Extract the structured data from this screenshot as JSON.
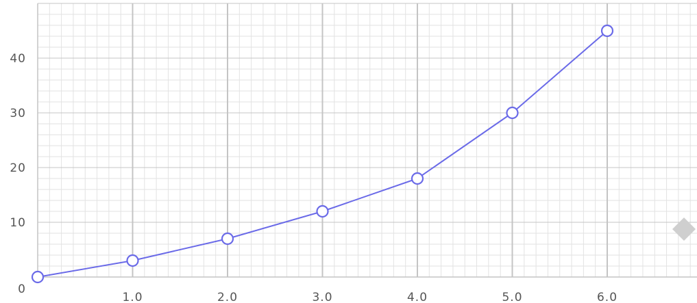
{
  "chart_data": {
    "type": "line",
    "title": "",
    "xlabel": "",
    "ylabel": "",
    "x": [
      0,
      1,
      2,
      3,
      4,
      5,
      6
    ],
    "series": [
      {
        "values": [
          0,
          3,
          7,
          12,
          18,
          30,
          45
        ],
        "color": "#6a6ae8",
        "marker": "hollow-circle"
      }
    ],
    "xlim": [
      0,
      7
    ],
    "ylim": [
      0,
      50
    ],
    "x_ticks": [
      {
        "value": 0,
        "label": "0"
      },
      {
        "value": 1,
        "label": "1.0"
      },
      {
        "value": 2,
        "label": "2.0"
      },
      {
        "value": 3,
        "label": "3.0"
      },
      {
        "value": 4,
        "label": "4.0"
      },
      {
        "value": 5,
        "label": "5.0"
      },
      {
        "value": 6,
        "label": "6.0"
      }
    ],
    "y_ticks": [
      {
        "value": 10,
        "label": "10"
      },
      {
        "value": 20,
        "label": "20"
      },
      {
        "value": 30,
        "label": "30"
      },
      {
        "value": 40,
        "label": "40"
      }
    ],
    "grid": true,
    "legend": "none"
  },
  "colors": {
    "line": "#6a6ae8",
    "grid_major": "#c4c4c4",
    "grid_minor": "#e2e2e2",
    "tick_text": "#555555",
    "handle": "#cfcfcf"
  },
  "decorations": {
    "handle_icon": "diamond-handle-icon"
  }
}
